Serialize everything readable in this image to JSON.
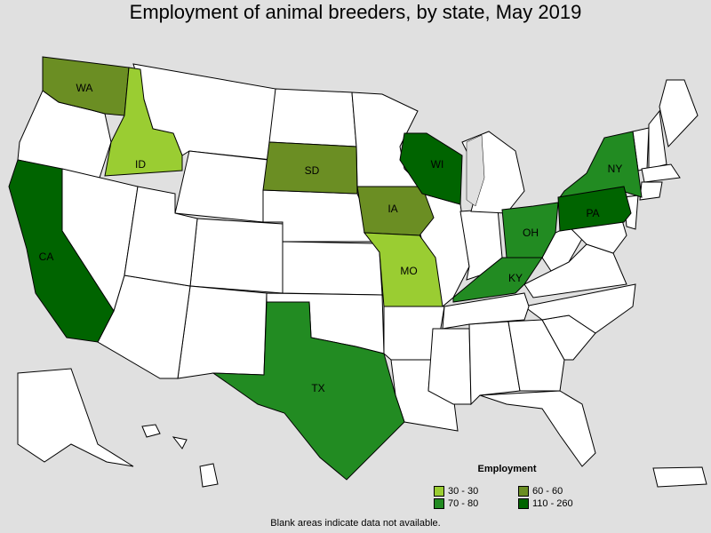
{
  "title": "Employment of animal breeders, by state, May 2019",
  "colors": {
    "background": "#e0e0e0",
    "no_data": "#ffffff",
    "c30": "#9acd32",
    "c60": "#6b8e23",
    "c70": "#228b22",
    "c110": "#006400"
  },
  "legend": {
    "title": "Employment",
    "items": [
      {
        "label": "30 - 30",
        "color": "#9acd32"
      },
      {
        "label": "60 - 60",
        "color": "#6b8e23"
      },
      {
        "label": "70 - 80",
        "color": "#228b22"
      },
      {
        "label": "110 - 260",
        "color": "#006400"
      }
    ]
  },
  "states": [
    {
      "abbr": "WA",
      "bin": "60 - 60"
    },
    {
      "abbr": "ID",
      "bin": "30 - 30"
    },
    {
      "abbr": "CA",
      "bin": "110 - 260"
    },
    {
      "abbr": "SD",
      "bin": "60 - 60"
    },
    {
      "abbr": "IA",
      "bin": "60 - 60"
    },
    {
      "abbr": "MO",
      "bin": "30 - 30"
    },
    {
      "abbr": "WI",
      "bin": "110 - 260"
    },
    {
      "abbr": "TX",
      "bin": "70 - 80"
    },
    {
      "abbr": "OH",
      "bin": "70 - 80"
    },
    {
      "abbr": "KY",
      "bin": "70 - 80"
    },
    {
      "abbr": "NY",
      "bin": "70 - 80"
    },
    {
      "abbr": "PA",
      "bin": "110 - 260"
    }
  ],
  "note": "Blank areas indicate data not available."
}
